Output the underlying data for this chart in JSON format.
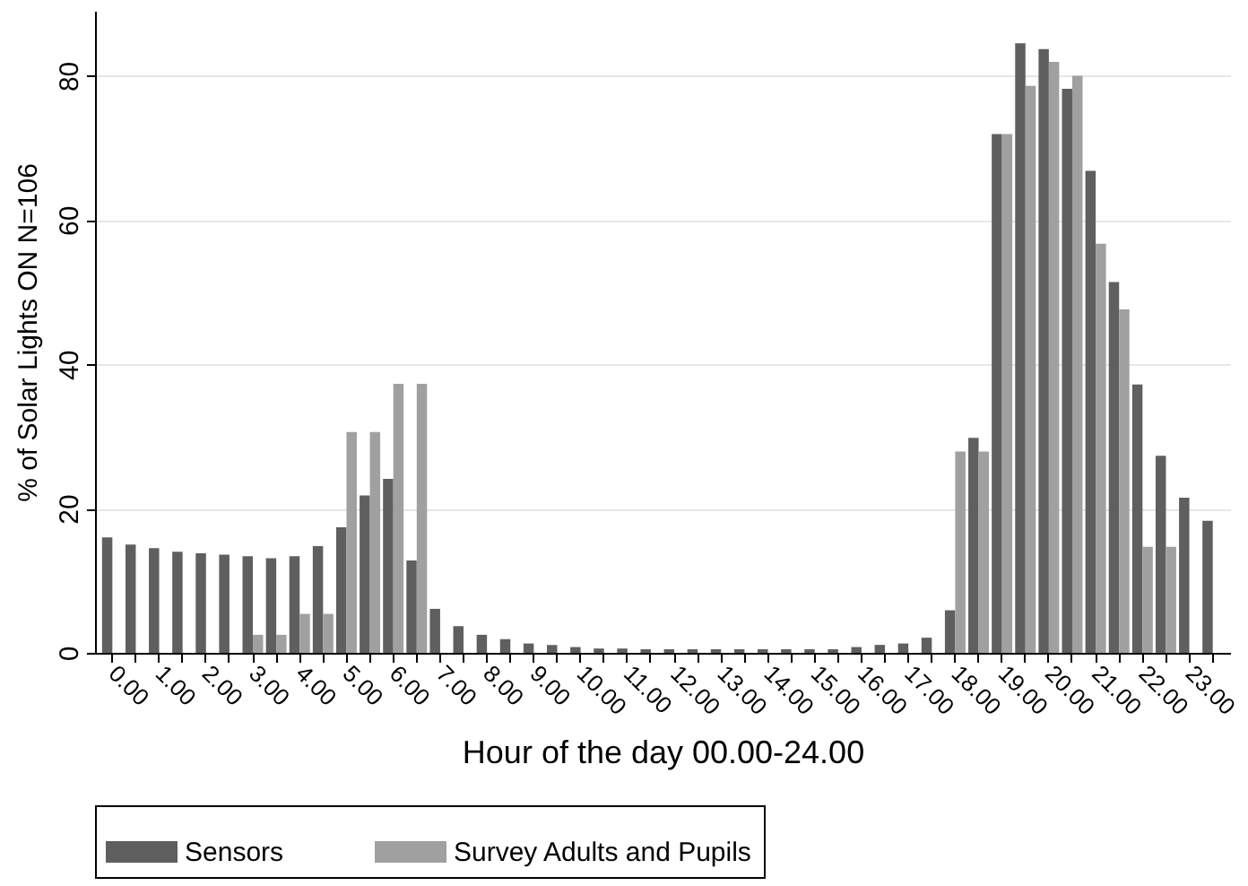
{
  "chart_data": {
    "type": "bar",
    "xlabel": "Hour of the day 00.00-24.00",
    "ylabel": "% of Solar Lights ON N=106",
    "categories": [
      "0.00",
      null,
      "1.00",
      null,
      "2.00",
      null,
      "3.00",
      null,
      "4.00",
      null,
      "5.00",
      null,
      "6.00",
      null,
      "7.00",
      null,
      "8.00",
      null,
      "9.00",
      null,
      "10.00",
      null,
      "11.00",
      null,
      "12.00",
      null,
      "13.00",
      null,
      "14.00",
      null,
      "15.00",
      null,
      "16.00",
      null,
      "17.00",
      null,
      "18.00",
      null,
      "19.00",
      null,
      "20.00",
      null,
      "21.00",
      null,
      "22.00",
      null,
      "23.00",
      null
    ],
    "series": [
      {
        "name": "Sensors",
        "color": "#5f5f5f",
        "values": [
          16.0,
          15.0,
          14.5,
          14.0,
          13.8,
          13.6,
          13.4,
          13.1,
          13.4,
          14.8,
          17.4,
          21.8,
          24.1,
          12.8,
          6.1,
          3.7,
          2.5,
          1.9,
          1.3,
          1.1,
          0.8,
          0.6,
          0.6,
          0.5,
          0.5,
          0.5,
          0.5,
          0.5,
          0.5,
          0.5,
          0.5,
          0.5,
          0.8,
          1.1,
          1.3,
          2.1,
          5.9,
          29.8,
          71.9,
          84.5,
          83.7,
          78.2,
          66.8,
          51.4,
          37.2,
          27.3,
          21.5,
          18.3
        ]
      },
      {
        "name": "Survey Adults and Pupils",
        "color": "#a0a0a0",
        "values": [
          null,
          null,
          null,
          null,
          null,
          null,
          2.5,
          2.5,
          5.4,
          5.4,
          30.6,
          30.6,
          37.3,
          37.3,
          null,
          null,
          null,
          null,
          null,
          null,
          null,
          null,
          null,
          null,
          null,
          null,
          null,
          null,
          null,
          null,
          null,
          null,
          null,
          null,
          null,
          null,
          27.9,
          27.9,
          71.9,
          78.6,
          81.9,
          80.0,
          56.7,
          47.6,
          14.7,
          14.7,
          null,
          null
        ]
      }
    ],
    "ylim": [
      0,
      89
    ],
    "yticks": [
      0,
      20,
      40,
      60,
      80
    ],
    "grid": "y",
    "legend": "bottom"
  }
}
